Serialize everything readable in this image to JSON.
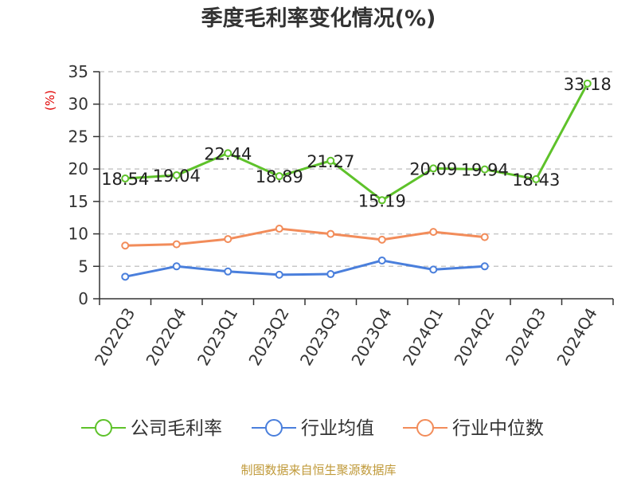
{
  "source_note": "制图数据来自恒生聚源数据库",
  "chart_data": {
    "type": "line",
    "title": "季度毛利率变化情况(%)",
    "ylabel": "(%)",
    "xlabel": "",
    "ylim": [
      0,
      35
    ],
    "yticks": [
      0,
      5,
      10,
      15,
      20,
      25,
      30,
      35
    ],
    "grid": true,
    "legend_position": "bottom",
    "categories": [
      "2022Q3",
      "2022Q4",
      "2023Q1",
      "2023Q2",
      "2023Q3",
      "2023Q4",
      "2024Q1",
      "2024Q2",
      "2024Q3",
      "2024Q4"
    ],
    "series": [
      {
        "name": "公司毛利率",
        "color": "#5ec22a",
        "values": [
          18.54,
          19.04,
          22.44,
          18.89,
          21.27,
          15.19,
          20.09,
          19.94,
          18.43,
          33.18
        ],
        "labels": [
          "18.54",
          "19.04",
          "22.44",
          "18.89",
          "21.27",
          "15.19",
          "20.09",
          "19.94",
          "18.43",
          "33.18"
        ]
      },
      {
        "name": "行业均值",
        "color": "#4a7fdc",
        "values": [
          3.4,
          5.0,
          4.2,
          3.7,
          3.8,
          5.9,
          4.5,
          5.0,
          null,
          null
        ]
      },
      {
        "name": "行业中位数",
        "color": "#f28c5a",
        "values": [
          8.2,
          8.4,
          9.2,
          10.8,
          10.0,
          9.1,
          10.3,
          9.5,
          null,
          null
        ]
      }
    ]
  }
}
